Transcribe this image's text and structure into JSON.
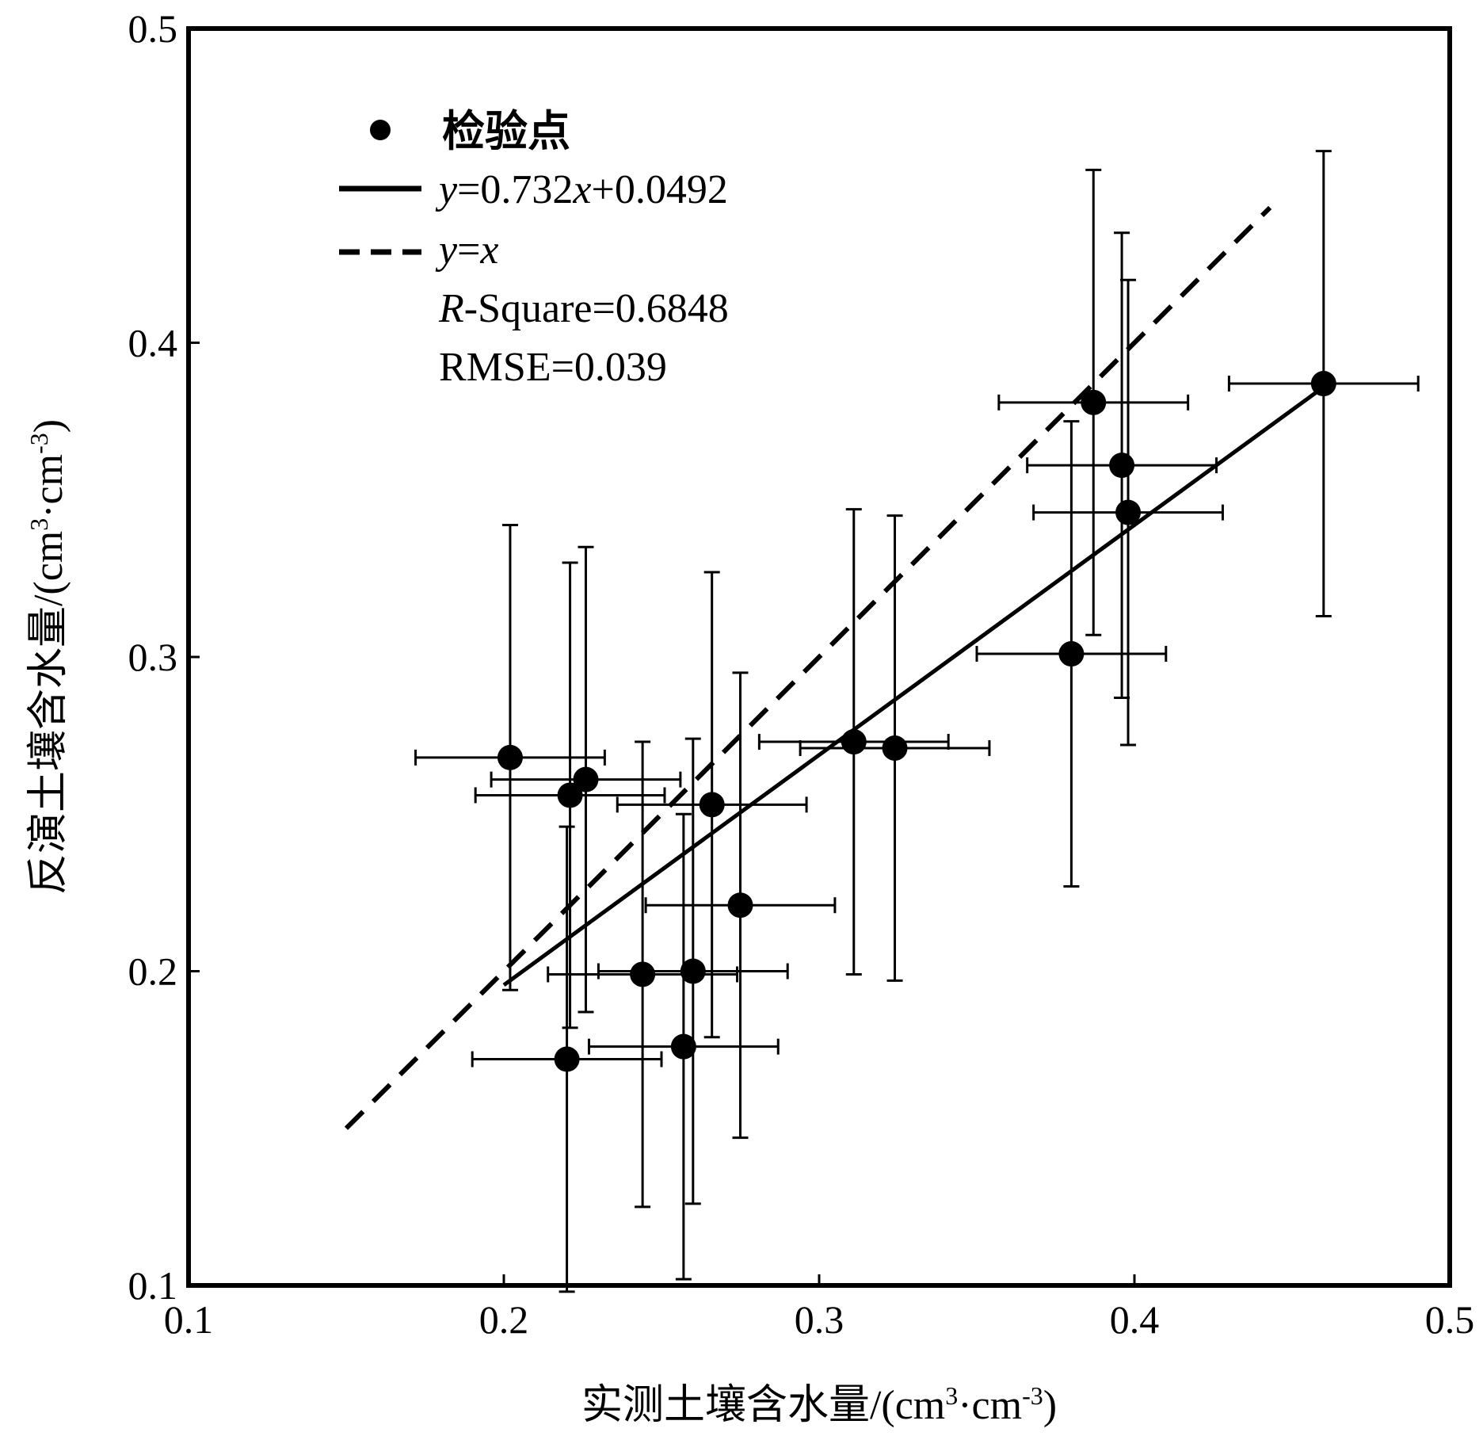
{
  "chart_data": {
    "type": "scatter",
    "xlabel_main": "实测土壤含水量/(cm",
    "xlabel_sup1": "3",
    "xlabel_mid": "·cm",
    "xlabel_sup2": "-3",
    "xlabel_end": ")",
    "ylabel_main": "反演土壤含水量/(cm",
    "ylabel_sup1": "3",
    "ylabel_mid": "·cm",
    "ylabel_sup2": "-3",
    "ylabel_end": ")",
    "xlim": [
      0.1,
      0.5
    ],
    "ylim": [
      0.1,
      0.5
    ],
    "xticks": [
      0.1,
      0.2,
      0.3,
      0.4,
      0.5
    ],
    "yticks": [
      0.1,
      0.2,
      0.3,
      0.4,
      0.5
    ],
    "xtick_labels": [
      "0.1",
      "0.2",
      "0.3",
      "0.4",
      "0.5"
    ],
    "ytick_labels": [
      "0.1",
      "0.2",
      "0.3",
      "0.4",
      "0.5"
    ],
    "points": [
      {
        "x": 0.202,
        "y": 0.268,
        "xerr": 0.03,
        "yerr": 0.074
      },
      {
        "x": 0.221,
        "y": 0.256,
        "xerr": 0.03,
        "yerr": 0.074
      },
      {
        "x": 0.226,
        "y": 0.261,
        "xerr": 0.03,
        "yerr": 0.074
      },
      {
        "x": 0.22,
        "y": 0.172,
        "xerr": 0.03,
        "yerr": 0.074
      },
      {
        "x": 0.244,
        "y": 0.199,
        "xerr": 0.03,
        "yerr": 0.074
      },
      {
        "x": 0.257,
        "y": 0.176,
        "xerr": 0.03,
        "yerr": 0.074
      },
      {
        "x": 0.26,
        "y": 0.2,
        "xerr": 0.03,
        "yerr": 0.074
      },
      {
        "x": 0.266,
        "y": 0.253,
        "xerr": 0.03,
        "yerr": 0.074
      },
      {
        "x": 0.275,
        "y": 0.221,
        "xerr": 0.03,
        "yerr": 0.074
      },
      {
        "x": 0.311,
        "y": 0.273,
        "xerr": 0.03,
        "yerr": 0.074
      },
      {
        "x": 0.324,
        "y": 0.271,
        "xerr": 0.03,
        "yerr": 0.074
      },
      {
        "x": 0.38,
        "y": 0.301,
        "xerr": 0.03,
        "yerr": 0.074
      },
      {
        "x": 0.387,
        "y": 0.381,
        "xerr": 0.03,
        "yerr": 0.074
      },
      {
        "x": 0.396,
        "y": 0.361,
        "xerr": 0.03,
        "yerr": 0.074
      },
      {
        "x": 0.398,
        "y": 0.346,
        "xerr": 0.03,
        "yerr": 0.074
      },
      {
        "x": 0.46,
        "y": 0.387,
        "xerr": 0.03,
        "yerr": 0.074
      }
    ],
    "fit_line": {
      "slope": 0.732,
      "intercept": 0.0492,
      "x_range": [
        0.2,
        0.46
      ]
    },
    "identity_line": {
      "x_range": [
        0.15,
        0.443
      ]
    },
    "legend": {
      "position": "top-left",
      "points_label": "检验点",
      "fit_label_y": "y",
      "fit_label_rest": "=0.732",
      "fit_label_x": "x",
      "fit_label_end": "+0.0492",
      "identity_label_y": "y",
      "identity_label_eq": "=",
      "identity_label_x": "x",
      "r2_label_r": "R",
      "r2_label_rest": "-Square=0.6848",
      "rmse_label": "RMSE=0.039"
    },
    "colors": {
      "marker": "#000000",
      "line": "#000000",
      "frame": "#000000"
    }
  }
}
